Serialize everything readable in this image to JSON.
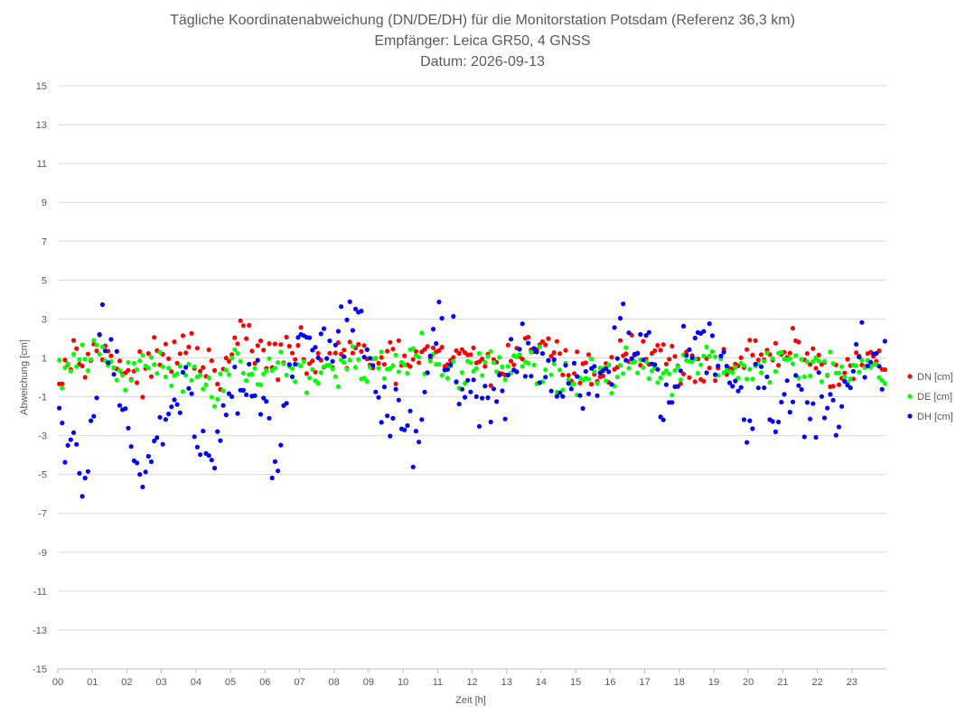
{
  "chart_data": {
    "type": "scatter",
    "title": "Tägliche Koordinatenabweichung (DN/DE/DH) für die Monitorstation Potsdam (Referenz 36,3 km)",
    "subtitle_lines": [
      "Empfänger: Leica GR50, 4 GNSS",
      "Datum: 2026-09-13"
    ],
    "xlabel": "Zeit [h]",
    "ylabel": "Abweichung [cm]",
    "xlim": [
      0,
      24
    ],
    "ylim": [
      -15,
      15
    ],
    "x_tick_labels": [
      "00",
      "01",
      "02",
      "03",
      "04",
      "05",
      "06",
      "07",
      "08",
      "09",
      "10",
      "11",
      "12",
      "13",
      "14",
      "15",
      "16",
      "17",
      "18",
      "19",
      "20",
      "21",
      "22",
      "23"
    ],
    "y_ticks": [
      15,
      13,
      11,
      9,
      7,
      5,
      3,
      1,
      -1,
      -3,
      -5,
      -7,
      -9,
      -11,
      -13,
      -15
    ],
    "grid": "horizontal",
    "legend_position": "right",
    "series": [
      {
        "name": "DN [cm]",
        "color": "#ff0000",
        "trend": [
          [
            0,
            0.5
          ],
          [
            0.5,
            1.4
          ],
          [
            1,
            1.5
          ],
          [
            1.5,
            1.2
          ],
          [
            2,
            0.4
          ],
          [
            2.3,
            0.0
          ],
          [
            2.7,
            0.6
          ],
          [
            3,
            1.0
          ],
          [
            3.5,
            1.2
          ],
          [
            4,
            1.3
          ],
          [
            4.3,
            0.5
          ],
          [
            4.7,
            -0.2
          ],
          [
            5,
            0.8
          ],
          [
            5.3,
            2.6
          ],
          [
            5.7,
            1.5
          ],
          [
            6,
            0.8
          ],
          [
            6.5,
            1.2
          ],
          [
            7,
            1.2
          ],
          [
            7.5,
            0.7
          ],
          [
            8,
            1.0
          ],
          [
            8.5,
            1.1
          ],
          [
            9,
            1.2
          ],
          [
            9.5,
            0.6
          ],
          [
            10,
            0.8
          ],
          [
            10.5,
            1.1
          ],
          [
            11,
            1.0
          ],
          [
            11.5,
            0.7
          ],
          [
            12,
            1.5
          ],
          [
            12.5,
            0.2
          ],
          [
            13,
            1.0
          ],
          [
            13.5,
            1.3
          ],
          [
            14,
            2.0
          ],
          [
            14.5,
            0.9
          ],
          [
            15,
            0.4
          ],
          [
            15.5,
            0.3
          ],
          [
            16,
            0.5
          ],
          [
            16.5,
            1.3
          ],
          [
            17,
            1.5
          ],
          [
            17.5,
            1.3
          ],
          [
            18,
            0.6
          ],
          [
            18.5,
            0.5
          ],
          [
            19,
            0.7
          ],
          [
            19.5,
            0.8
          ],
          [
            20,
            1.2
          ],
          [
            20.5,
            0.7
          ],
          [
            21,
            1.2
          ],
          [
            21.5,
            1.5
          ],
          [
            22,
            0.6
          ],
          [
            22.5,
            0.4
          ],
          [
            23,
            0.6
          ],
          [
            23.5,
            1.0
          ],
          [
            24,
            0.8
          ]
        ],
        "spread": 0.5,
        "points_per_hour": 12
      },
      {
        "name": "DE [cm]",
        "color": "#00ff00",
        "trend": [
          [
            0,
            0.2
          ],
          [
            0.5,
            0.6
          ],
          [
            1,
            1.2
          ],
          [
            1.5,
            0.8
          ],
          [
            2,
            -0.3
          ],
          [
            2.5,
            1.0
          ],
          [
            3,
            0.6
          ],
          [
            3.5,
            0.1
          ],
          [
            4,
            0.5
          ],
          [
            4.4,
            -1.1
          ],
          [
            5,
            1.0
          ],
          [
            5.5,
            0.4
          ],
          [
            6,
            0.3
          ],
          [
            6.5,
            0.8
          ],
          [
            7,
            0.2
          ],
          [
            7.5,
            0.2
          ],
          [
            8,
            0.4
          ],
          [
            8.5,
            0.8
          ],
          [
            9,
            0.1
          ],
          [
            9.5,
            0.3
          ],
          [
            10,
            0.6
          ],
          [
            10.5,
            1.1
          ],
          [
            11,
            0.6
          ],
          [
            11.5,
            0.1
          ],
          [
            12,
            0.3
          ],
          [
            12.5,
            1.0
          ],
          [
            13,
            0.3
          ],
          [
            13.5,
            0.8
          ],
          [
            14,
            0.6
          ],
          [
            14.5,
            0.2
          ],
          [
            15,
            -0.1
          ],
          [
            15.5,
            0.0
          ],
          [
            16,
            0.1
          ],
          [
            16.5,
            1.0
          ],
          [
            17,
            0.4
          ],
          [
            17.5,
            0.1
          ],
          [
            18,
            0.4
          ],
          [
            18.5,
            0.7
          ],
          [
            19,
            0.9
          ],
          [
            19.5,
            0.5
          ],
          [
            20,
            0.5
          ],
          [
            20.5,
            0.6
          ],
          [
            21,
            0.9
          ],
          [
            21.5,
            0.5
          ],
          [
            22,
            1.1
          ],
          [
            22.5,
            0.4
          ],
          [
            23,
            0.5
          ],
          [
            23.5,
            0.5
          ],
          [
            24,
            0.7
          ]
        ],
        "spread": 0.45,
        "points_per_hour": 12
      },
      {
        "name": "DH [cm]",
        "color": "#0000ff",
        "trend": [
          [
            0,
            -2.0
          ],
          [
            0.5,
            -4.5
          ],
          [
            0.8,
            -6.0
          ],
          [
            1,
            -1.5
          ],
          [
            1.3,
            2.5
          ],
          [
            1.7,
            0.8
          ],
          [
            2,
            -2.5
          ],
          [
            2.4,
            -5.5
          ],
          [
            2.8,
            -4.0
          ],
          [
            3.2,
            -2.5
          ],
          [
            3.6,
            0.5
          ],
          [
            4,
            -3.5
          ],
          [
            4.5,
            -4.5
          ],
          [
            5,
            -1.0
          ],
          [
            5.5,
            -0.5
          ],
          [
            6,
            -1.5
          ],
          [
            6.3,
            -4.5
          ],
          [
            6.7,
            -0.5
          ],
          [
            7,
            1.5
          ],
          [
            7.5,
            0.3
          ],
          [
            8,
            1.7
          ],
          [
            8.3,
            3.0
          ],
          [
            8.7,
            2.8
          ],
          [
            9,
            0.3
          ],
          [
            9.5,
            -1.0
          ],
          [
            10,
            -2.0
          ],
          [
            10.3,
            -3.5
          ],
          [
            10.7,
            0.2
          ],
          [
            11,
            2.5
          ],
          [
            11.5,
            0.8
          ],
          [
            12,
            -1.5
          ],
          [
            12.4,
            -2.0
          ],
          [
            12.8,
            -0.6
          ],
          [
            13,
            0.3
          ],
          [
            13.5,
            1.2
          ],
          [
            14,
            0.8
          ],
          [
            14.5,
            -1.0
          ],
          [
            15,
            -0.4
          ],
          [
            15.5,
            -1.0
          ],
          [
            16,
            0.5
          ],
          [
            16.3,
            3.0
          ],
          [
            16.7,
            0.5
          ],
          [
            17,
            1.5
          ],
          [
            17.3,
            -0.5
          ],
          [
            17.6,
            -2.0
          ],
          [
            18,
            0.8
          ],
          [
            18.5,
            1.5
          ],
          [
            19,
            1.5
          ],
          [
            19.5,
            0.0
          ],
          [
            20,
            -2.5
          ],
          [
            20.3,
            -1.0
          ],
          [
            20.7,
            -1.5
          ],
          [
            21,
            -1.0
          ],
          [
            21.5,
            -1.2
          ],
          [
            22,
            -1.5
          ],
          [
            22.5,
            -2.0
          ],
          [
            23,
            0.2
          ],
          [
            23.5,
            1.5
          ],
          [
            24,
            -0.5
          ]
        ],
        "spread": 0.9,
        "points_per_hour": 12
      }
    ]
  }
}
